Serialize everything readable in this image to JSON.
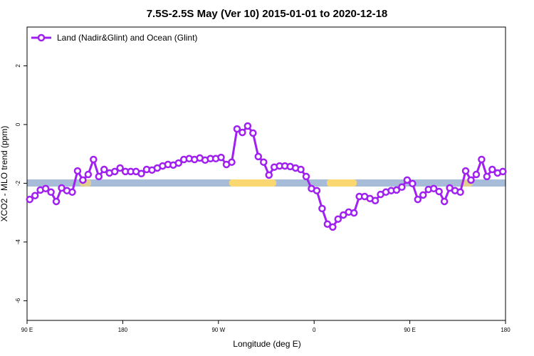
{
  "chart_data": {
    "type": "line",
    "title": "7.5S-2.5S May (Ver 10)   2015-01-01 to 2020-12-18",
    "x_label": "Longitude (deg E)",
    "y_label": "XCO2 - MLO trend (ppm)",
    "x": [
      92.5,
      97.5,
      102.5,
      107.5,
      112.5,
      117.5,
      122.5,
      127.5,
      132.5,
      137.5,
      142.5,
      147.5,
      152.5,
      157.5,
      162.5,
      167.5,
      172.5,
      177.5,
      182.5,
      187.5,
      192.5,
      197.5,
      202.5,
      207.5,
      212.5,
      217.5,
      222.5,
      227.5,
      232.5,
      237.5,
      242.5,
      247.5,
      252.5,
      257.5,
      262.5,
      267.5,
      272.5,
      277.5,
      282.5,
      287.5,
      292.5,
      297.5,
      302.5,
      307.5,
      312.5,
      317.5,
      322.5,
      327.5,
      332.5,
      337.5,
      342.5,
      347.5,
      352.5,
      357.5,
      362.5,
      367.5,
      372.5,
      377.5,
      382.5,
      387.5,
      392.5,
      397.5,
      402.5,
      407.5,
      412.5,
      417.5,
      422.5,
      427.5,
      432.5,
      437.5,
      442.5,
      447.5,
      452.5,
      457.5,
      462.5,
      467.5,
      472.5,
      477.5,
      482.5,
      487.5,
      492.5,
      497.5,
      502.5,
      507.5,
      512.5,
      517.5,
      522.5,
      527.5,
      532.5,
      537.5
    ],
    "series": [
      {
        "name": "Land (Nadir&Glint) and Ocean (Glint)",
        "color": "#a020f0",
        "values": [
          -2.55,
          -2.42,
          -2.23,
          -2.18,
          -2.3,
          -2.62,
          -2.16,
          -2.25,
          -2.3,
          -1.58,
          -1.89,
          -1.7,
          -1.19,
          -1.77,
          -1.53,
          -1.65,
          -1.6,
          -1.48,
          -1.6,
          -1.6,
          -1.6,
          -1.67,
          -1.53,
          -1.55,
          -1.48,
          -1.41,
          -1.36,
          -1.38,
          -1.31,
          -1.19,
          -1.16,
          -1.19,
          -1.14,
          -1.21,
          -1.16,
          -1.16,
          -1.12,
          -1.36,
          -1.28,
          -0.15,
          -0.27,
          -0.05,
          -0.29,
          -1.09,
          -1.28,
          -1.72,
          -1.45,
          -1.41,
          -1.41,
          -1.43,
          -1.48,
          -1.53,
          -1.77,
          -2.18,
          -2.25,
          -2.86,
          -3.39,
          -3.49,
          -3.22,
          -3.08,
          -2.98,
          -3.01,
          -2.45,
          -2.45,
          -2.52,
          -2.59,
          -2.38,
          -2.3,
          -2.25,
          -2.23,
          -2.13,
          -1.89,
          -2.01,
          -2.55,
          -2.4,
          -2.21,
          -2.18,
          -2.28,
          -2.62,
          -2.16,
          -2.25,
          -2.3,
          -1.58,
          -1.89,
          -1.7,
          -1.19,
          -1.77,
          -1.53,
          -1.65,
          -1.6
        ]
      }
    ],
    "xlim": [
      90,
      540
    ],
    "ylim": [
      -6.67,
      3.32
    ],
    "xticks": [
      {
        "value": 90,
        "label": "90 E"
      },
      180,
      {
        "value": 270,
        "label": "90 W"
      },
      0,
      {
        "value": 450,
        "label": "90 E"
      },
      {
        "value": 540,
        "label": "180"
      }
    ],
    "yticks": [
      2,
      0,
      -2,
      -4,
      -6
    ],
    "legend": "top-left"
  }
}
